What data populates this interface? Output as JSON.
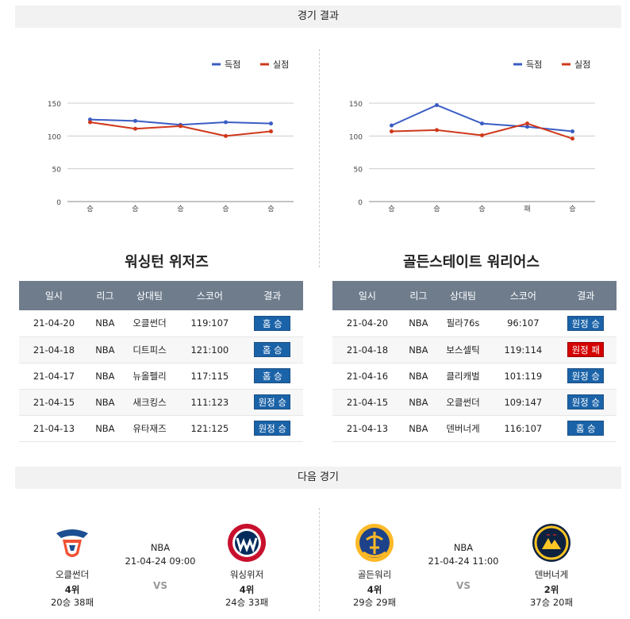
{
  "results_header": "경기 결과",
  "next_header": "다음 경기",
  "legend": {
    "score": "득점",
    "conceded": "실점"
  },
  "colors": {
    "score": "#3a5dc4",
    "conceded": "#d0381b"
  },
  "yticks": [
    "0",
    "50",
    "100",
    "150"
  ],
  "columns": [
    "일시",
    "리그",
    "상대팀",
    "스코어",
    "결과"
  ],
  "left": {
    "team": "워싱턴 위저즈",
    "chart_data": {
      "type": "line",
      "categories": [
        "승",
        "승",
        "승",
        "승",
        "승"
      ],
      "ylim": [
        0,
        150
      ],
      "series": [
        {
          "name": "득점",
          "values": [
            125,
            123,
            117,
            121,
            119
          ]
        },
        {
          "name": "실점",
          "values": [
            121,
            111,
            115,
            100,
            107
          ]
        }
      ]
    },
    "rows": [
      {
        "date": "21-04-20",
        "league": "NBA",
        "opponent": "오클썬더",
        "score": "119:107",
        "result": "홈 승",
        "win": true
      },
      {
        "date": "21-04-18",
        "league": "NBA",
        "opponent": "디트피스",
        "score": "121:100",
        "result": "홈 승",
        "win": true
      },
      {
        "date": "21-04-17",
        "league": "NBA",
        "opponent": "뉴올펠리",
        "score": "117:115",
        "result": "홈 승",
        "win": true
      },
      {
        "date": "21-04-15",
        "league": "NBA",
        "opponent": "새크킹스",
        "score": "111:123",
        "result": "원정 승",
        "win": true
      },
      {
        "date": "21-04-13",
        "league": "NBA",
        "opponent": "유타재즈",
        "score": "121:125",
        "result": "원정 승",
        "win": true
      }
    ],
    "next": {
      "home": {
        "name": "오클썬더",
        "rank": "4위",
        "record": "20승 38패"
      },
      "league": "NBA",
      "datetime": "21-04-24 09:00",
      "vs": "VS",
      "away": {
        "name": "워싱위저",
        "rank": "4위",
        "record": "24승 33패"
      }
    }
  },
  "right": {
    "team": "골든스테이트 워리어스",
    "chart_data": {
      "type": "line",
      "categories": [
        "승",
        "승",
        "승",
        "패",
        "승"
      ],
      "ylim": [
        0,
        150
      ],
      "series": [
        {
          "name": "득점",
          "values": [
            116,
            147,
            119,
            114,
            107
          ]
        },
        {
          "name": "실점",
          "values": [
            107,
            109,
            101,
            119,
            96
          ]
        }
      ]
    },
    "rows": [
      {
        "date": "21-04-20",
        "league": "NBA",
        "opponent": "필라76s",
        "score": "96:107",
        "result": "원정 승",
        "win": true
      },
      {
        "date": "21-04-18",
        "league": "NBA",
        "opponent": "보스셀틱",
        "score": "119:114",
        "result": "원정 패",
        "win": false
      },
      {
        "date": "21-04-16",
        "league": "NBA",
        "opponent": "클리캐벌",
        "score": "101:119",
        "result": "원정 승",
        "win": true
      },
      {
        "date": "21-04-15",
        "league": "NBA",
        "opponent": "오클썬더",
        "score": "109:147",
        "result": "원정 승",
        "win": true
      },
      {
        "date": "21-04-13",
        "league": "NBA",
        "opponent": "덴버너게",
        "score": "116:107",
        "result": "홈 승",
        "win": true
      }
    ],
    "next": {
      "home": {
        "name": "골든워리",
        "rank": "4위",
        "record": "29승 29패"
      },
      "league": "NBA",
      "datetime": "21-04-24 11:00",
      "vs": "VS",
      "away": {
        "name": "덴버너게",
        "rank": "2위",
        "record": "37승 20패"
      }
    }
  }
}
